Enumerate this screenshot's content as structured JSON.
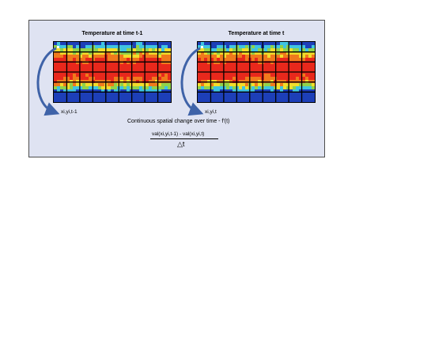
{
  "diagram": {
    "map_left_title": "Temperature at time t-1",
    "map_right_title": "Temperature at time t",
    "point_left_label": "xi,yi,t-1",
    "point_right_label": "xi,yi,t",
    "caption": "Continuous spatial change over time - f'(t)",
    "numerator": "val(xi,yi,t-1) - val(xi,yi,t)",
    "denominator": "△t"
  },
  "colors": {
    "panel_bg": "#dfe3f2",
    "arrow": "#3f63a8",
    "grid": "#000000",
    "heat_red": "#e8281c",
    "heat_orange": "#f07a1c",
    "heat_yellow": "#f2dd2a",
    "heat_green": "#8fd24a",
    "heat_cyan": "#3fc4e0",
    "heat_blue": "#1d3fb8"
  },
  "icons": [
    "curved-arrow-icon"
  ]
}
